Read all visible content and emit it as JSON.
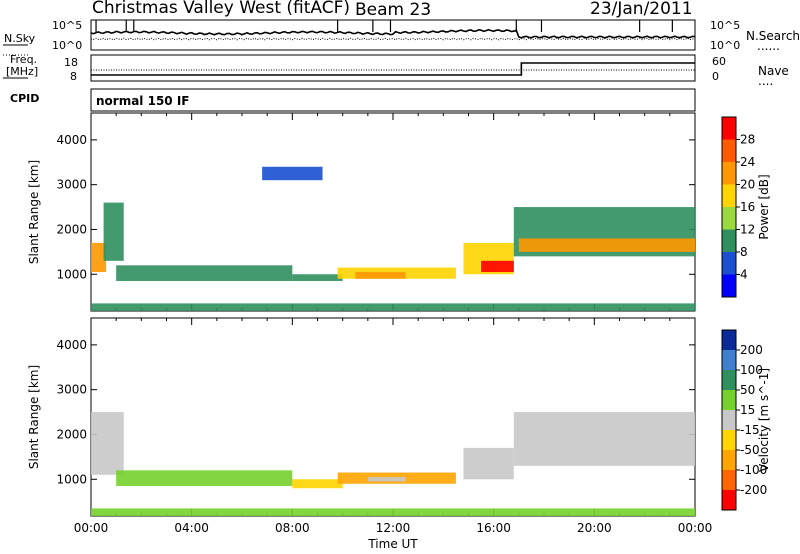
{
  "header": {
    "station": "Christmas Valley West (fitACF)",
    "beam": "Beam 23",
    "date": "23/Jan/2011"
  },
  "noise_panel": {
    "left_label": "N.Sky",
    "right_label": "N.Search",
    "right_legend": "......",
    "left_ticks": [
      "10^5",
      "10^0"
    ],
    "right_ticks": [
      "10^5",
      "10^0"
    ]
  },
  "freq_panel": {
    "left_label_line1": "Freq.",
    "left_label_line2": "[MHz]",
    "right_label": "Nave",
    "right_legend": "....",
    "left_ticks": [
      "18",
      "8"
    ],
    "right_ticks": [
      "60",
      "0"
    ]
  },
  "cpid_panel": {
    "label": "CPID",
    "mode": "normal 150 IF"
  },
  "power_colorbar": {
    "label": "Power [dB]",
    "ticks": [
      "28",
      "24",
      "20",
      "16",
      "12",
      "8",
      "4"
    ],
    "colors": [
      "#ff0000",
      "#ff5a00",
      "#ff9800",
      "#ffd400",
      "#9cd93f",
      "#2f8f5f",
      "#1a4fd0",
      "#0000ff"
    ]
  },
  "velocity_colorbar": {
    "label": "Velocity [m s^-1]",
    "ticks": [
      "200",
      "100",
      "50",
      "15",
      "-15",
      "-50",
      "-100",
      "-200"
    ],
    "colors": [
      "#0b2a9a",
      "#3f7fd0",
      "#2f8f5f",
      "#76d12d",
      "#c8c8c8",
      "#ffd400",
      "#ffa500",
      "#ff6600",
      "#ff0000"
    ]
  },
  "chart_data": [
    {
      "type": "heatmap",
      "panel": "power",
      "ylabel": "Slant Range [km]",
      "yticks": [
        "4000",
        "3000",
        "2000",
        "1000"
      ],
      "ylim": [
        180,
        4600
      ],
      "xlim": [
        0,
        24
      ],
      "regions": [
        {
          "x0": 0.0,
          "x1": 0.6,
          "y0": 1050,
          "y1": 1700,
          "level": 20
        },
        {
          "x0": 0.5,
          "x1": 1.3,
          "y0": 1300,
          "y1": 2600,
          "level": 8
        },
        {
          "x0": 1.0,
          "x1": 8.0,
          "y0": 850,
          "y1": 1200,
          "level": 8
        },
        {
          "x0": 8.0,
          "x1": 10.0,
          "y0": 850,
          "y1": 1000,
          "level": 8
        },
        {
          "x0": 9.8,
          "x1": 14.5,
          "y0": 900,
          "y1": 1150,
          "level": 16
        },
        {
          "x0": 10.5,
          "x1": 12.5,
          "y0": 900,
          "y1": 1050,
          "level": 20
        },
        {
          "x0": 14.8,
          "x1": 16.8,
          "y0": 1000,
          "y1": 1700,
          "level": 14
        },
        {
          "x0": 15.5,
          "x1": 16.8,
          "y0": 1050,
          "y1": 1300,
          "level": 26
        },
        {
          "x0": 16.8,
          "x1": 24.0,
          "y0": 1400,
          "y1": 2500,
          "level": 10
        },
        {
          "x0": 17.0,
          "x1": 24.0,
          "y0": 1500,
          "y1": 1800,
          "level": 20
        },
        {
          "x0": 6.8,
          "x1": 9.2,
          "y0": 3100,
          "y1": 3400,
          "level": 6
        },
        {
          "x0": 0.0,
          "x1": 24.0,
          "y0": 180,
          "y1": 350,
          "level": 8
        }
      ]
    },
    {
      "type": "heatmap",
      "panel": "velocity",
      "ylabel": "Slant Range [km]",
      "yticks": [
        "4000",
        "3000",
        "2000",
        "1000"
      ],
      "ylim": [
        180,
        4600
      ],
      "xlim": [
        0,
        24
      ],
      "xlabel": "Time UT",
      "xticks": [
        "00:00",
        "04:00",
        "08:00",
        "12:00",
        "16:00",
        "20:00",
        "00:00"
      ],
      "regions": [
        {
          "x0": 0.0,
          "x1": 1.3,
          "y0": 1100,
          "y1": 2500,
          "level": 0
        },
        {
          "x0": 1.0,
          "x1": 8.0,
          "y0": 850,
          "y1": 1200,
          "level": 20
        },
        {
          "x0": 8.0,
          "x1": 10.0,
          "y0": 800,
          "y1": 1000,
          "level": -20
        },
        {
          "x0": 9.8,
          "x1": 14.5,
          "y0": 900,
          "y1": 1150,
          "level": -40
        },
        {
          "x0": 11.0,
          "x1": 12.5,
          "y0": 950,
          "y1": 1050,
          "level": 0
        },
        {
          "x0": 14.8,
          "x1": 16.8,
          "y0": 1000,
          "y1": 1700,
          "level": 0
        },
        {
          "x0": 16.8,
          "x1": 24.0,
          "y0": 1300,
          "y1": 2500,
          "level": 0
        },
        {
          "x0": 0.0,
          "x1": 24.0,
          "y0": 180,
          "y1": 350,
          "level": 20
        }
      ]
    }
  ]
}
